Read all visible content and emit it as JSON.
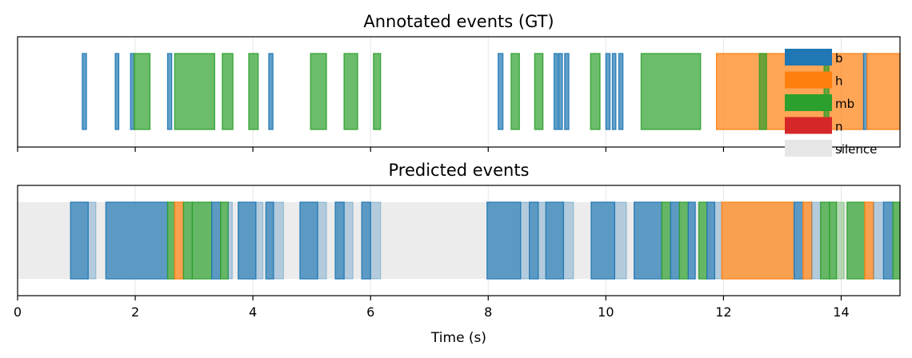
{
  "chart_data": [
    {
      "type": "timeline",
      "title": "Annotated events (GT)",
      "xlim": [
        0,
        15
      ],
      "x_ticks": [
        0,
        2,
        4,
        6,
        8,
        10,
        12,
        14
      ],
      "show_x_tick_labels": false,
      "grid": true,
      "legend": {
        "placement": "top-right",
        "entries": [
          {
            "label": "b",
            "color": "#1f77b4"
          },
          {
            "label": "h",
            "color": "#ff7f0e"
          },
          {
            "label": "mb",
            "color": "#2ca02c"
          },
          {
            "label": "n",
            "color": "#d62728"
          },
          {
            "label": "silence",
            "color": "#e6e6e6"
          }
        ]
      },
      "events": [
        {
          "label": "b",
          "start": 1.1,
          "end": 1.17
        },
        {
          "label": "b",
          "start": 1.66,
          "end": 1.72
        },
        {
          "label": "b",
          "start": 1.92,
          "end": 1.98
        },
        {
          "label": "mb",
          "start": 1.98,
          "end": 2.25
        },
        {
          "label": "b",
          "start": 2.55,
          "end": 2.62
        },
        {
          "label": "mb",
          "start": 2.67,
          "end": 3.35
        },
        {
          "label": "mb",
          "start": 3.48,
          "end": 3.66
        },
        {
          "label": "mb",
          "start": 3.93,
          "end": 4.09
        },
        {
          "label": "b",
          "start": 4.27,
          "end": 4.34
        },
        {
          "label": "mb",
          "start": 4.98,
          "end": 5.25
        },
        {
          "label": "mb",
          "start": 5.55,
          "end": 5.78
        },
        {
          "label": "mb",
          "start": 6.05,
          "end": 6.17
        },
        {
          "label": "b",
          "start": 8.17,
          "end": 8.25
        },
        {
          "label": "mb",
          "start": 8.39,
          "end": 8.53
        },
        {
          "label": "mb",
          "start": 8.79,
          "end": 8.93
        },
        {
          "label": "b",
          "start": 9.12,
          "end": 9.18
        },
        {
          "label": "b",
          "start": 9.2,
          "end": 9.26
        },
        {
          "label": "b",
          "start": 9.3,
          "end": 9.37
        },
        {
          "label": "mb",
          "start": 9.74,
          "end": 9.9
        },
        {
          "label": "b",
          "start": 10.0,
          "end": 10.07
        },
        {
          "label": "b",
          "start": 10.11,
          "end": 10.17
        },
        {
          "label": "b",
          "start": 10.22,
          "end": 10.29
        },
        {
          "label": "mb",
          "start": 10.6,
          "end": 11.61
        },
        {
          "label": "h",
          "start": 11.88,
          "end": 14.38
        },
        {
          "label": "mb",
          "start": 12.61,
          "end": 12.73
        },
        {
          "label": "mb",
          "start": 13.71,
          "end": 13.79
        },
        {
          "label": "b",
          "start": 14.38,
          "end": 14.44
        },
        {
          "label": "h",
          "start": 14.44,
          "end": 15.0
        }
      ]
    },
    {
      "type": "timeline",
      "title": "Predicted events",
      "xlim": [
        0,
        15
      ],
      "x_ticks": [
        0,
        2,
        4,
        6,
        8,
        10,
        12,
        14
      ],
      "xlabel": "Time (s)",
      "grid": true,
      "events": [
        {
          "label": "silence",
          "start": 0.0,
          "end": 15.0
        },
        {
          "label": "b",
          "start": 0.9,
          "end": 1.2
        },
        {
          "label": "b",
          "start": 1.2,
          "end": 1.33,
          "faded": true
        },
        {
          "label": "b",
          "start": 1.5,
          "end": 2.55
        },
        {
          "label": "mb",
          "start": 2.55,
          "end": 2.67
        },
        {
          "label": "h",
          "start": 2.67,
          "end": 2.82
        },
        {
          "label": "mb",
          "start": 2.82,
          "end": 2.97
        },
        {
          "label": "mb",
          "start": 2.97,
          "end": 3.3
        },
        {
          "label": "b",
          "start": 3.3,
          "end": 3.45
        },
        {
          "label": "mb",
          "start": 3.45,
          "end": 3.58
        },
        {
          "label": "b",
          "start": 3.58,
          "end": 3.65,
          "faded": true
        },
        {
          "label": "b",
          "start": 3.75,
          "end": 4.05
        },
        {
          "label": "b",
          "start": 4.05,
          "end": 4.17,
          "faded": true
        },
        {
          "label": "b",
          "start": 4.22,
          "end": 4.35
        },
        {
          "label": "b",
          "start": 4.35,
          "end": 4.52,
          "faded": true
        },
        {
          "label": "b",
          "start": 4.8,
          "end": 5.1
        },
        {
          "label": "b",
          "start": 5.1,
          "end": 5.25,
          "faded": true
        },
        {
          "label": "b",
          "start": 5.4,
          "end": 5.55
        },
        {
          "label": "b",
          "start": 5.55,
          "end": 5.7,
          "faded": true
        },
        {
          "label": "b",
          "start": 5.85,
          "end": 6.0
        },
        {
          "label": "b",
          "start": 6.0,
          "end": 6.17,
          "faded": true
        },
        {
          "label": "b",
          "start": 7.98,
          "end": 8.55
        },
        {
          "label": "b",
          "start": 8.55,
          "end": 8.7,
          "faded": true
        },
        {
          "label": "b",
          "start": 8.7,
          "end": 8.85
        },
        {
          "label": "b",
          "start": 8.85,
          "end": 8.98,
          "faded": true
        },
        {
          "label": "b",
          "start": 8.98,
          "end": 9.28
        },
        {
          "label": "b",
          "start": 9.28,
          "end": 9.45,
          "faded": true
        },
        {
          "label": "b",
          "start": 9.75,
          "end": 10.15
        },
        {
          "label": "b",
          "start": 10.15,
          "end": 10.35,
          "faded": true
        },
        {
          "label": "b",
          "start": 10.48,
          "end": 10.95
        },
        {
          "label": "mb",
          "start": 10.95,
          "end": 11.1
        },
        {
          "label": "b",
          "start": 11.1,
          "end": 11.25
        },
        {
          "label": "mb",
          "start": 11.25,
          "end": 11.4
        },
        {
          "label": "b",
          "start": 11.4,
          "end": 11.52
        },
        {
          "label": "mb",
          "start": 11.58,
          "end": 11.72
        },
        {
          "label": "b",
          "start": 11.72,
          "end": 11.85
        },
        {
          "label": "b",
          "start": 11.85,
          "end": 11.97,
          "faded": true
        },
        {
          "label": "h",
          "start": 11.97,
          "end": 13.2
        },
        {
          "label": "b",
          "start": 13.2,
          "end": 13.35
        },
        {
          "label": "h",
          "start": 13.35,
          "end": 13.5
        },
        {
          "label": "b",
          "start": 13.5,
          "end": 13.65,
          "faded": true
        },
        {
          "label": "mb",
          "start": 13.65,
          "end": 13.8
        },
        {
          "label": "mb",
          "start": 13.8,
          "end": 13.92
        },
        {
          "label": "mb",
          "start": 13.92,
          "end": 14.05,
          "faded": true
        },
        {
          "label": "mb",
          "start": 14.1,
          "end": 14.4
        },
        {
          "label": "h",
          "start": 14.4,
          "end": 14.55
        },
        {
          "label": "b",
          "start": 14.55,
          "end": 14.72,
          "faded": true
        },
        {
          "label": "b",
          "start": 14.72,
          "end": 14.88
        },
        {
          "label": "mb",
          "start": 14.88,
          "end": 15.0
        }
      ]
    }
  ]
}
